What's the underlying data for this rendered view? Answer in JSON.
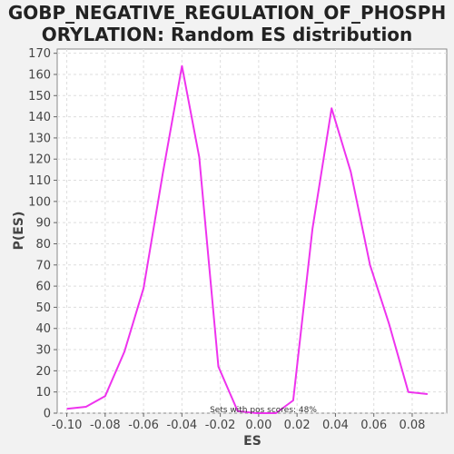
{
  "chart_data": {
    "type": "line",
    "title_line1": "GOBP_NEGATIVE_REGULATION_OF_PHOSPH",
    "title_line2": "ORYLATION: Random ES distribution",
    "xlabel": "ES",
    "ylabel": "P(ES)",
    "xlim": [
      -0.105,
      0.098
    ],
    "ylim": [
      0,
      172
    ],
    "x_ticks": [
      -0.1,
      -0.08,
      -0.06,
      -0.04,
      -0.02,
      0.0,
      0.02,
      0.04,
      0.06,
      0.08
    ],
    "x_tick_labels": [
      "-0.10",
      "-0.08",
      "-0.06",
      "-0.04",
      "-0.02",
      "0.00",
      "0.02",
      "0.04",
      "0.06",
      "0.08"
    ],
    "y_ticks": [
      0,
      10,
      20,
      30,
      40,
      50,
      60,
      70,
      80,
      90,
      100,
      110,
      120,
      130,
      140,
      150,
      160,
      170
    ],
    "grid": true,
    "series": [
      {
        "color": "#ee33ee",
        "x": [
          -0.1,
          -0.09,
          -0.08,
          -0.07,
          -0.06,
          -0.05,
          -0.04,
          -0.031,
          -0.021,
          -0.011,
          -0.001,
          0.009,
          0.018,
          0.028,
          0.038,
          0.048,
          0.058,
          0.068,
          0.078,
          0.088
        ],
        "y": [
          2,
          3,
          8,
          29,
          59,
          113,
          164,
          121,
          22,
          1,
          0,
          0,
          6,
          87,
          144,
          114,
          70,
          42,
          10,
          9
        ]
      }
    ],
    "annotation": "Sets with pos scores: 48%"
  }
}
